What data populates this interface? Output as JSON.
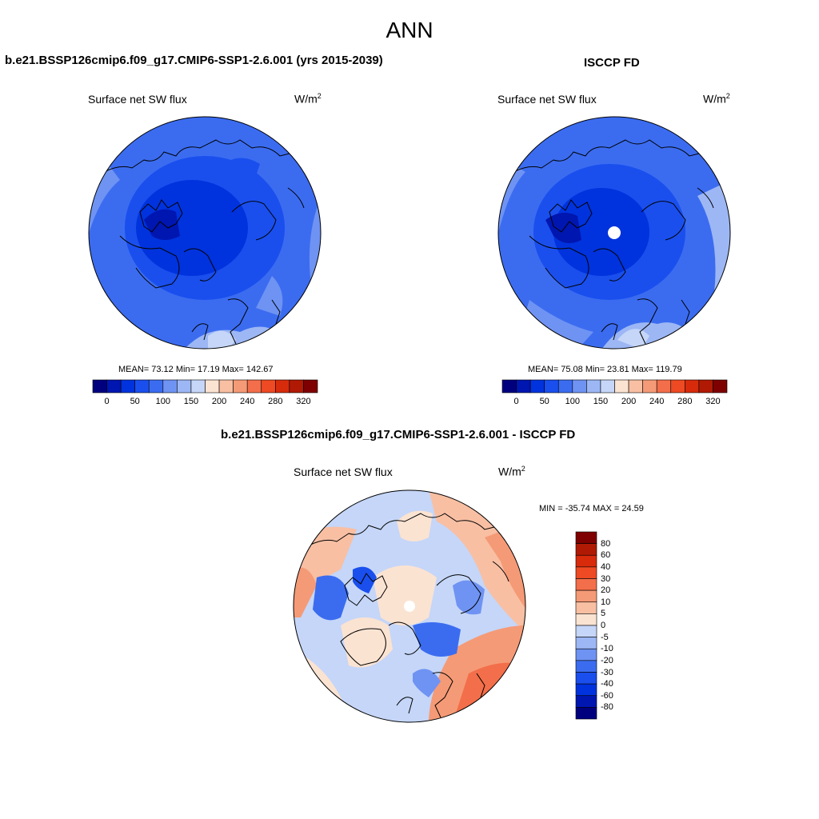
{
  "figure": {
    "title": "ANN",
    "panels": {
      "model": {
        "title": "b.e21.BSSP126cmip6.f09_g17.CMIP6-SSP1-2.6.001 (yrs 2015-2039)",
        "variable": "Surface net SW flux",
        "units": "W/m",
        "units_exp": "2",
        "stats": "MEAN=  73.12  Min=  17.19  Max= 142.67",
        "mean": 73.12,
        "min": 17.19,
        "max": 142.67
      },
      "obs": {
        "title": "ISCCP FD",
        "variable": "Surface net SW flux",
        "units": "W/m",
        "units_exp": "2",
        "stats": "MEAN=  75.08  Min=  23.81  Max= 119.79",
        "mean": 75.08,
        "min": 23.81,
        "max": 119.79
      },
      "diff": {
        "title": "b.e21.BSSP126cmip6.f09_g17.CMIP6-SSP1-2.6.001 - ISCCP FD",
        "variable": "Surface net SW flux",
        "units": "W/m",
        "units_exp": "2",
        "stats": "MIN = -35.74 MAX =  24.59",
        "min": -35.74,
        "max": 24.59
      }
    },
    "colorbar_main": {
      "labels": [
        "0",
        "50",
        "100",
        "150",
        "200",
        "240",
        "280",
        "320"
      ],
      "colors": [
        "#00007f",
        "#0016b0",
        "#0033dd",
        "#1a4fee",
        "#3b6cf0",
        "#6e93f3",
        "#9db7f5",
        "#c5d6f8",
        "#fbe3d2",
        "#f8bfa3",
        "#f59a76",
        "#f36e4a",
        "#ee4a23",
        "#d72b0c",
        "#b01a04",
        "#7f0000"
      ]
    },
    "colorbar_diff": {
      "labels": [
        "80",
        "60",
        "40",
        "30",
        "20",
        "10",
        "5",
        "0",
        "-5",
        "-10",
        "-20",
        "-30",
        "-40",
        "-60",
        "-80"
      ],
      "colors": [
        "#7f0000",
        "#b01a04",
        "#d72b0c",
        "#ee4a23",
        "#f36e4a",
        "#f59a76",
        "#f8bfa3",
        "#fbe3d2",
        "#c5d6f8",
        "#9db7f5",
        "#6e93f3",
        "#3b6cf0",
        "#1a4fee",
        "#0033dd",
        "#0016b0",
        "#00007f"
      ]
    }
  }
}
